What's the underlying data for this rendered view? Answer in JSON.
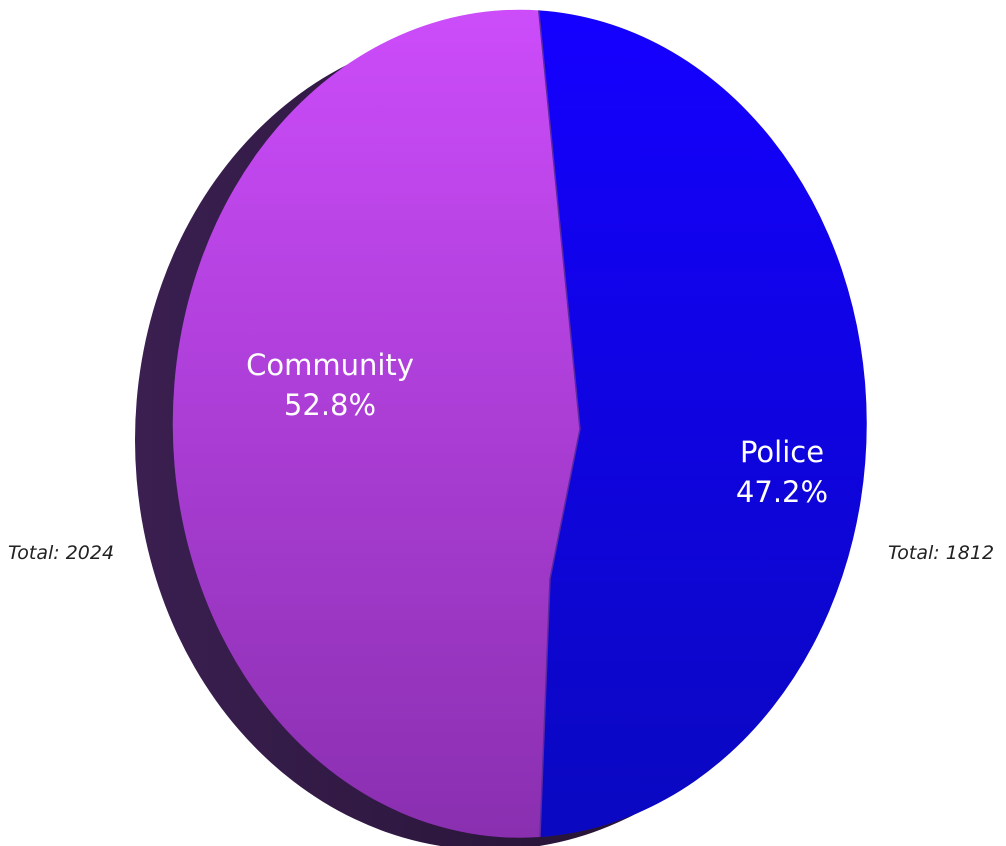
{
  "chart_data": {
    "type": "pie",
    "title": "",
    "slices": [
      {
        "label": "Community",
        "value": 52.8,
        "percent_label": "52.8%",
        "color": "#b040e8"
      },
      {
        "label": "Police",
        "value": 47.2,
        "percent_label": "47.2%",
        "color": "#1a10e0"
      }
    ],
    "totals": [
      {
        "text": "Total: 2024"
      },
      {
        "text": "Total: 1812"
      }
    ],
    "colors": {
      "community_top": "#cc4cfa",
      "community_bottom": "#8a2fb0",
      "police_top": "#1400ff",
      "police_bottom": "#0a08c0",
      "pie_side": "#2a1638"
    }
  }
}
